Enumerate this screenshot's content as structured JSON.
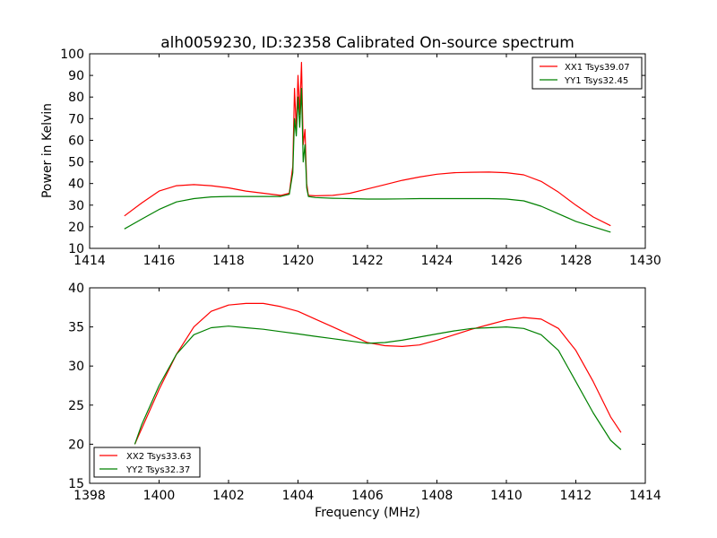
{
  "chart_data": [
    {
      "type": "line",
      "title": "alh0059230, ID:32358 Calibrated On-source spectrum",
      "xlabel": "",
      "ylabel": "Power in Kelvin",
      "xlim": [
        1414,
        1430
      ],
      "ylim": [
        10,
        100
      ],
      "xticks": [
        1414,
        1416,
        1418,
        1420,
        1422,
        1424,
        1426,
        1428,
        1430
      ],
      "yticks": [
        10,
        20,
        30,
        40,
        50,
        60,
        70,
        80,
        90,
        100
      ],
      "grid": false,
      "legend_position": "top-right",
      "series": [
        {
          "name": "XX1 Tsys39.07",
          "color": "#ff0000",
          "x": [
            1415.0,
            1415.5,
            1416.0,
            1416.5,
            1417.0,
            1417.5,
            1418.0,
            1418.5,
            1419.0,
            1419.5,
            1419.75,
            1419.85,
            1419.9,
            1419.95,
            1420.0,
            1420.05,
            1420.1,
            1420.15,
            1420.2,
            1420.25,
            1420.3,
            1420.5,
            1421.0,
            1421.5,
            1422.0,
            1422.5,
            1423.0,
            1423.5,
            1424.0,
            1424.5,
            1425.0,
            1425.5,
            1426.0,
            1426.5,
            1427.0,
            1427.5,
            1428.0,
            1428.5,
            1429.0
          ],
          "y": [
            25.0,
            31.0,
            36.5,
            39.0,
            39.5,
            39.0,
            38.0,
            36.5,
            35.5,
            34.5,
            35.5,
            48.0,
            84.0,
            65.0,
            90.0,
            72.0,
            96.0,
            58.0,
            65.0,
            40.0,
            34.5,
            34.3,
            34.5,
            35.5,
            37.5,
            39.5,
            41.5,
            43.0,
            44.3,
            45.0,
            45.2,
            45.3,
            45.0,
            44.0,
            41.0,
            36.0,
            30.0,
            24.5,
            20.5
          ]
        },
        {
          "name": "YY1 Tsys32.45",
          "color": "#008000",
          "x": [
            1415.0,
            1415.5,
            1416.0,
            1416.5,
            1417.0,
            1417.5,
            1418.0,
            1418.5,
            1419.0,
            1419.5,
            1419.75,
            1419.85,
            1419.9,
            1419.95,
            1420.0,
            1420.05,
            1420.1,
            1420.15,
            1420.2,
            1420.25,
            1420.3,
            1420.5,
            1421.0,
            1421.5,
            1422.0,
            1422.5,
            1423.0,
            1423.5,
            1424.0,
            1424.5,
            1425.0,
            1425.5,
            1426.0,
            1426.5,
            1427.0,
            1427.5,
            1428.0,
            1428.5,
            1429.0
          ],
          "y": [
            19.0,
            23.5,
            28.0,
            31.5,
            33.0,
            33.8,
            34.0,
            34.0,
            34.0,
            34.0,
            35.0,
            45.0,
            70.0,
            62.0,
            80.0,
            66.0,
            84.0,
            50.0,
            58.0,
            38.0,
            34.0,
            33.5,
            33.2,
            33.0,
            32.8,
            32.8,
            32.9,
            33.0,
            33.0,
            33.0,
            33.0,
            33.0,
            32.8,
            32.0,
            29.5,
            26.0,
            22.5,
            20.0,
            17.5
          ]
        }
      ]
    },
    {
      "type": "line",
      "title": "",
      "xlabel": "Frequency (MHz)",
      "ylabel": "",
      "xlim": [
        1398,
        1414
      ],
      "ylim": [
        15,
        40
      ],
      "xticks": [
        1398,
        1400,
        1402,
        1404,
        1406,
        1408,
        1410,
        1412,
        1414
      ],
      "yticks": [
        15,
        20,
        25,
        30,
        35,
        40
      ],
      "grid": false,
      "legend_position": "bottom-left",
      "series": [
        {
          "name": "XX2 Tsys33.63",
          "color": "#ff0000",
          "x": [
            1399.3,
            1399.5,
            1400.0,
            1400.5,
            1401.0,
            1401.5,
            1402.0,
            1402.5,
            1403.0,
            1403.5,
            1404.0,
            1404.5,
            1405.0,
            1405.5,
            1406.0,
            1406.5,
            1407.0,
            1407.5,
            1408.0,
            1408.5,
            1409.0,
            1409.5,
            1410.0,
            1410.5,
            1411.0,
            1411.5,
            1412.0,
            1412.5,
            1413.0,
            1413.3
          ],
          "y": [
            20.0,
            22.0,
            27.0,
            31.5,
            35.0,
            37.0,
            37.8,
            38.0,
            38.0,
            37.6,
            37.0,
            36.0,
            35.0,
            34.0,
            33.0,
            32.6,
            32.5,
            32.7,
            33.3,
            34.0,
            34.7,
            35.3,
            35.9,
            36.2,
            36.0,
            34.8,
            32.0,
            28.0,
            23.5,
            21.5
          ]
        },
        {
          "name": "YY2 Tsys32.37",
          "color": "#008000",
          "x": [
            1399.3,
            1399.5,
            1400.0,
            1400.5,
            1401.0,
            1401.5,
            1402.0,
            1402.5,
            1403.0,
            1403.5,
            1404.0,
            1404.5,
            1405.0,
            1405.5,
            1406.0,
            1406.5,
            1407.0,
            1407.5,
            1408.0,
            1408.5,
            1409.0,
            1409.5,
            1410.0,
            1410.5,
            1411.0,
            1411.5,
            1412.0,
            1412.5,
            1413.0,
            1413.3
          ],
          "y": [
            20.0,
            22.5,
            27.5,
            31.5,
            34.0,
            34.9,
            35.1,
            34.9,
            34.7,
            34.4,
            34.1,
            33.8,
            33.5,
            33.2,
            32.9,
            33.0,
            33.3,
            33.7,
            34.1,
            34.5,
            34.8,
            34.9,
            35.0,
            34.8,
            34.0,
            32.0,
            28.0,
            24.0,
            20.5,
            19.3
          ]
        }
      ]
    }
  ]
}
